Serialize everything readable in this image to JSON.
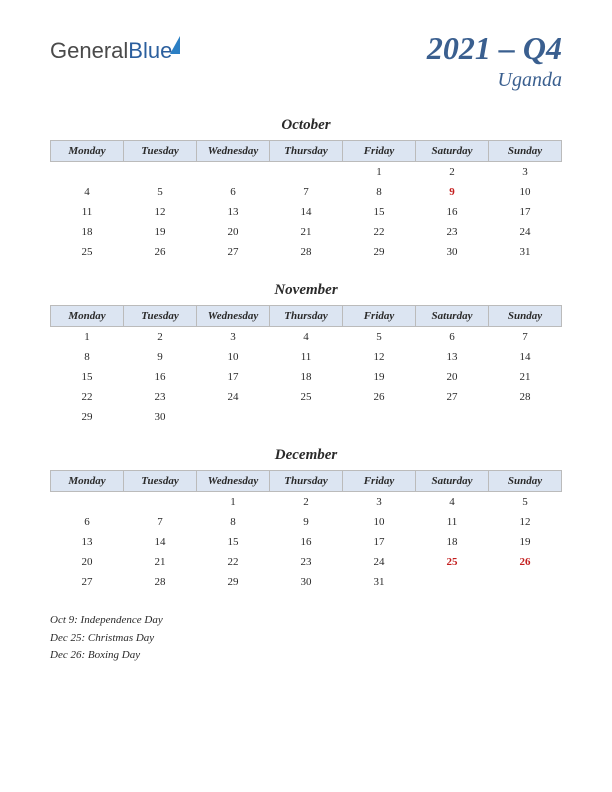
{
  "logo": {
    "part1": "General",
    "part2": "Blue"
  },
  "title": "2021 – Q4",
  "subtitle": "Uganda",
  "colors": {
    "header_bg": "#dce5f2",
    "header_border": "#bbbbbb",
    "title_color": "#3a5f8f",
    "text_color": "#2a2a2a",
    "holiday_color": "#c41e1e",
    "logo_blue": "#2b5f9e"
  },
  "day_headers": [
    "Monday",
    "Tuesday",
    "Wednesday",
    "Thursday",
    "Friday",
    "Saturday",
    "Sunday"
  ],
  "months": [
    {
      "name": "October",
      "weeks": [
        [
          "",
          "",
          "",
          "",
          "1",
          "2",
          "3"
        ],
        [
          "4",
          "5",
          "6",
          "7",
          "8",
          "9",
          "10"
        ],
        [
          "11",
          "12",
          "13",
          "14",
          "15",
          "16",
          "17"
        ],
        [
          "18",
          "19",
          "20",
          "21",
          "22",
          "23",
          "24"
        ],
        [
          "25",
          "26",
          "27",
          "28",
          "29",
          "30",
          "31"
        ]
      ],
      "holidays": [
        "9"
      ]
    },
    {
      "name": "November",
      "weeks": [
        [
          "1",
          "2",
          "3",
          "4",
          "5",
          "6",
          "7"
        ],
        [
          "8",
          "9",
          "10",
          "11",
          "12",
          "13",
          "14"
        ],
        [
          "15",
          "16",
          "17",
          "18",
          "19",
          "20",
          "21"
        ],
        [
          "22",
          "23",
          "24",
          "25",
          "26",
          "27",
          "28"
        ],
        [
          "29",
          "30",
          "",
          "",
          "",
          "",
          ""
        ]
      ],
      "holidays": []
    },
    {
      "name": "December",
      "weeks": [
        [
          "",
          "",
          "1",
          "2",
          "3",
          "4",
          "5"
        ],
        [
          "6",
          "7",
          "8",
          "9",
          "10",
          "11",
          "12"
        ],
        [
          "13",
          "14",
          "15",
          "16",
          "17",
          "18",
          "19"
        ],
        [
          "20",
          "21",
          "22",
          "23",
          "24",
          "25",
          "26"
        ],
        [
          "27",
          "28",
          "29",
          "30",
          "31",
          "",
          ""
        ]
      ],
      "holidays": [
        "25",
        "26"
      ]
    }
  ],
  "holiday_list": [
    "Oct 9: Independence Day",
    "Dec 25: Christmas Day",
    "Dec 26: Boxing Day"
  ]
}
